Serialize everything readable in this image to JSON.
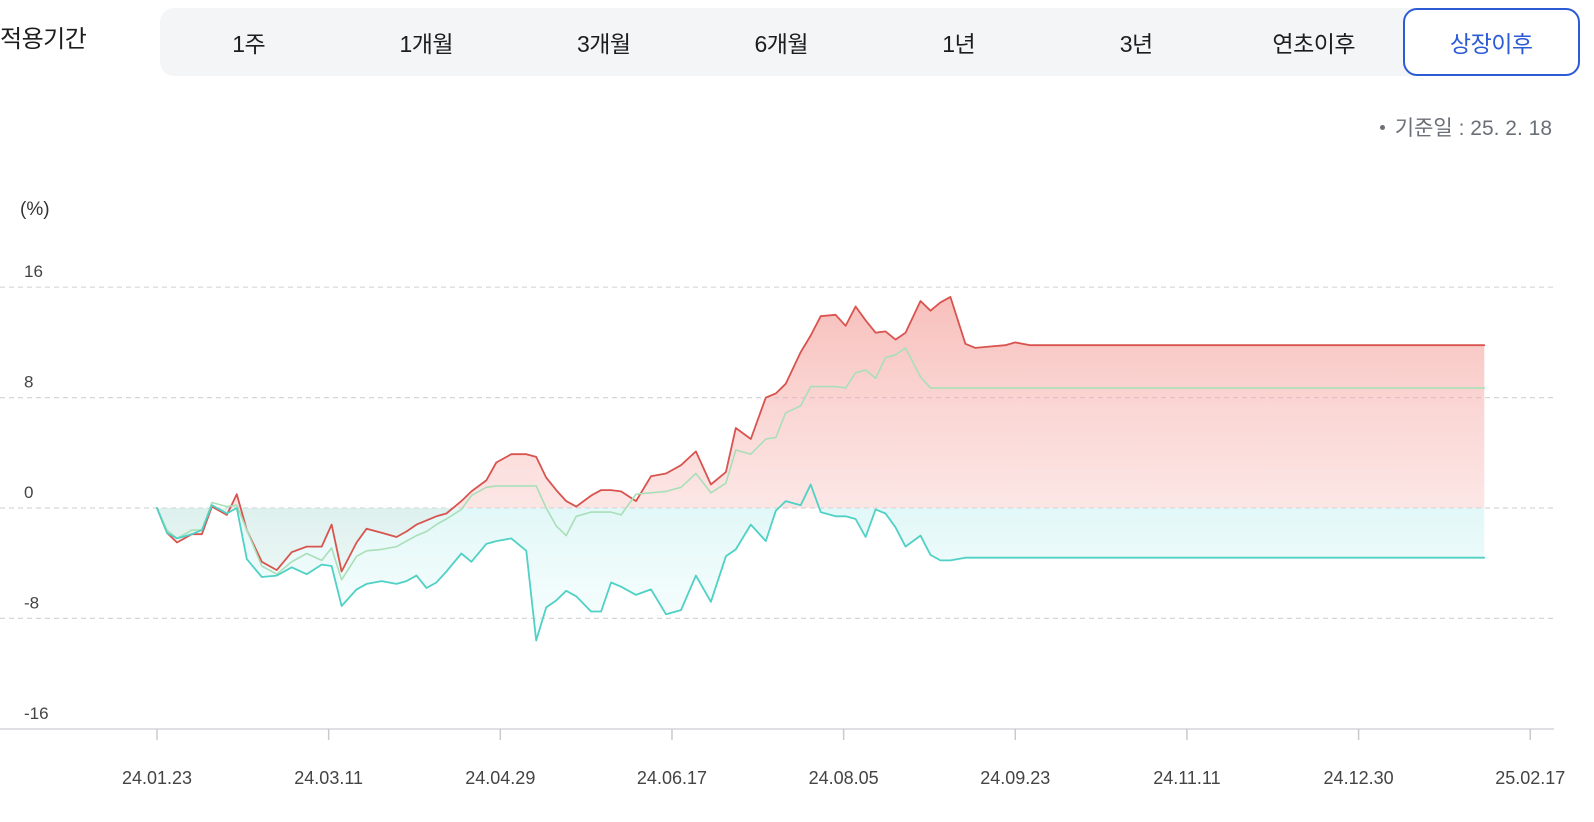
{
  "period_selector": {
    "label": "적용기간",
    "tabs": [
      {
        "label": "1주",
        "active": false
      },
      {
        "label": "1개월",
        "active": false
      },
      {
        "label": "3개월",
        "active": false
      },
      {
        "label": "6개월",
        "active": false
      },
      {
        "label": "1년",
        "active": false
      },
      {
        "label": "3년",
        "active": false
      },
      {
        "label": "연초이후",
        "active": false
      },
      {
        "label": "상장이후",
        "active": true
      }
    ],
    "active_color": "#2d5bd6"
  },
  "reference_date": "기준일 : 25. 2. 18",
  "chart_data": {
    "type": "area",
    "y_unit_label": "(%)",
    "ylim": [
      -16,
      16
    ],
    "yticks": [
      16,
      8,
      0,
      -8,
      -16
    ],
    "ytick_labels": [
      "16",
      "8",
      "0",
      "-8",
      "-16"
    ],
    "xticks": [
      "24.01.23",
      "24.03.11",
      "24.04.29",
      "24.06.17",
      "24.08.05",
      "24.09.23",
      "24.11.11",
      "24.12.30",
      "25.02.17"
    ],
    "grid": true,
    "x_index": [
      0,
      2,
      4,
      7,
      9,
      11,
      14,
      16,
      18,
      21,
      24,
      27,
      30,
      33,
      35,
      37,
      40,
      42,
      45,
      48,
      50,
      52,
      54,
      56,
      58,
      61,
      63,
      66,
      68,
      71,
      74,
      76,
      78,
      80,
      82,
      84,
      87,
      89,
      91,
      93,
      96,
      99,
      102,
      105,
      108,
      111,
      114,
      116,
      119,
      122,
      124,
      126,
      129,
      131,
      133,
      136,
      138,
      140,
      142,
      144,
      146,
      148,
      150,
      153,
      155,
      157,
      159,
      162,
      164,
      167,
      170,
      172,
      175,
      177,
      179,
      181,
      183,
      185,
      187,
      190,
      192,
      194,
      197,
      199,
      201,
      203,
      205,
      207,
      210,
      212,
      215,
      217,
      219,
      221,
      224,
      226,
      228,
      231,
      233,
      235,
      237,
      239,
      241,
      244,
      246,
      248,
      251,
      253,
      255,
      257,
      259,
      262,
      264,
      266,
      269,
      271,
      273
    ],
    "series": [
      {
        "color": "#d9534f",
        "values": [
          0,
          -1.8,
          -2.5,
          -1.9,
          -1.9,
          0.1,
          -0.5,
          1.0,
          -1.6,
          -3.9,
          -4.5,
          -3.2,
          -2.8,
          -2.8,
          -1.2,
          -4.6,
          -2.5,
          -1.5,
          -1.8,
          -2.1,
          -1.7,
          -1.2,
          -0.9,
          -0.6,
          -0.4,
          0.5,
          1.2,
          2.0,
          3.3,
          3.9,
          3.9,
          3.7,
          2.2,
          1.3,
          0.5,
          0.1,
          0.9,
          1.3,
          1.3,
          1.2,
          0.5,
          2.3,
          2.5,
          3.1,
          4.1,
          1.7,
          2.6,
          5.8,
          5.0,
          8.0,
          8.3,
          9.0,
          11.3,
          12.5,
          13.9,
          14.0,
          13.2,
          14.6,
          13.6,
          12.7,
          12.8,
          12.2,
          12.7,
          15.0,
          14.3,
          14.9,
          15.3,
          11.9,
          11.6,
          11.7,
          11.8,
          12.0,
          11.8,
          11.8,
          11.8,
          11.8,
          11.8,
          11.8,
          11.8,
          11.8,
          11.8,
          11.8,
          11.8,
          11.8,
          11.8,
          11.8,
          11.8,
          11.8,
          11.8,
          11.8,
          11.8,
          11.8,
          11.8,
          11.8,
          11.8,
          11.8,
          11.8,
          11.8,
          11.8,
          11.8,
          11.8,
          11.8,
          11.8,
          11.8,
          11.8,
          11.8,
          11.8,
          11.8,
          11.8,
          11.8,
          11.8,
          11.8,
          11.8,
          11.8,
          11.8,
          11.8
        ]
      },
      {
        "color": "#a9dfb8",
        "values": [
          0,
          -1.6,
          -2.2,
          -1.6,
          -1.6,
          0.4,
          0.1,
          0.2,
          -1.6,
          -4.2,
          -4.8,
          -3.9,
          -3.3,
          -3.8,
          -2.9,
          -5.2,
          -3.5,
          -3.1,
          -3.0,
          -2.8,
          -2.4,
          -2.0,
          -1.7,
          -1.2,
          -0.8,
          -0.1,
          0.9,
          1.5,
          1.6,
          1.6,
          1.6,
          1.6,
          0.0,
          -1.3,
          -2.0,
          -0.6,
          -0.3,
          -0.3,
          -0.3,
          -0.5,
          1.0,
          1.1,
          1.2,
          1.5,
          2.5,
          1.1,
          1.8,
          4.2,
          3.9,
          5.0,
          5.1,
          6.9,
          7.4,
          8.8,
          8.8,
          8.8,
          8.7,
          9.8,
          10.0,
          9.4,
          10.9,
          11.1,
          11.6,
          9.5,
          8.7,
          8.7,
          8.7,
          8.7,
          8.7,
          8.7,
          8.7,
          8.7,
          8.7,
          8.7,
          8.7,
          8.7,
          8.7,
          8.7,
          8.7,
          8.7,
          8.7,
          8.7,
          8.7,
          8.7,
          8.7,
          8.7,
          8.7,
          8.7,
          8.7,
          8.7,
          8.7,
          8.7,
          8.7,
          8.7,
          8.7,
          8.7,
          8.7,
          8.7,
          8.7,
          8.7,
          8.7,
          8.7,
          8.7,
          8.7,
          8.7,
          8.7,
          8.7,
          8.7,
          8.7,
          8.7,
          8.7,
          8.7,
          8.7,
          8.7,
          8.7,
          8.7
        ]
      },
      {
        "color": "#4fd1c5",
        "values": [
          0,
          -1.8,
          -2.2,
          -1.9,
          -1.6,
          0.2,
          -0.4,
          0.0,
          -3.7,
          -5.0,
          -4.9,
          -4.3,
          -4.8,
          -4.1,
          -4.2,
          -7.1,
          -5.9,
          -5.5,
          -5.3,
          -5.5,
          -5.3,
          -4.9,
          -5.8,
          -5.4,
          -4.6,
          -3.3,
          -3.9,
          -2.6,
          -2.4,
          -2.2,
          -3.1,
          -9.6,
          -7.2,
          -6.7,
          -6.0,
          -6.4,
          -7.5,
          -7.5,
          -5.4,
          -5.7,
          -6.3,
          -5.9,
          -7.7,
          -7.4,
          -4.9,
          -6.8,
          -3.5,
          -3.0,
          -1.2,
          -2.4,
          -0.2,
          0.5,
          0.2,
          1.7,
          -0.3,
          -0.6,
          -0.6,
          -0.8,
          -2.1,
          -0.1,
          -0.4,
          -1.4,
          -2.8,
          -2.0,
          -3.4,
          -3.8,
          -3.8,
          -3.6,
          -3.6,
          -3.6,
          -3.6,
          -3.6,
          -3.6,
          -3.6,
          -3.6,
          -3.6,
          -3.6,
          -3.6,
          -3.6,
          -3.6,
          -3.6,
          -3.6,
          -3.6,
          -3.6,
          -3.6,
          -3.6,
          -3.6,
          -3.6,
          -3.6,
          -3.6,
          -3.6,
          -3.6,
          -3.6,
          -3.6,
          -3.6,
          -3.6,
          -3.6,
          -3.6,
          -3.6,
          -3.6,
          -3.6,
          -3.6,
          -3.6,
          -3.6,
          -3.6,
          -3.6,
          -3.6,
          -3.6,
          -3.6,
          -3.6,
          -3.6,
          -3.6,
          -3.6,
          -3.6
        ]
      }
    ]
  }
}
